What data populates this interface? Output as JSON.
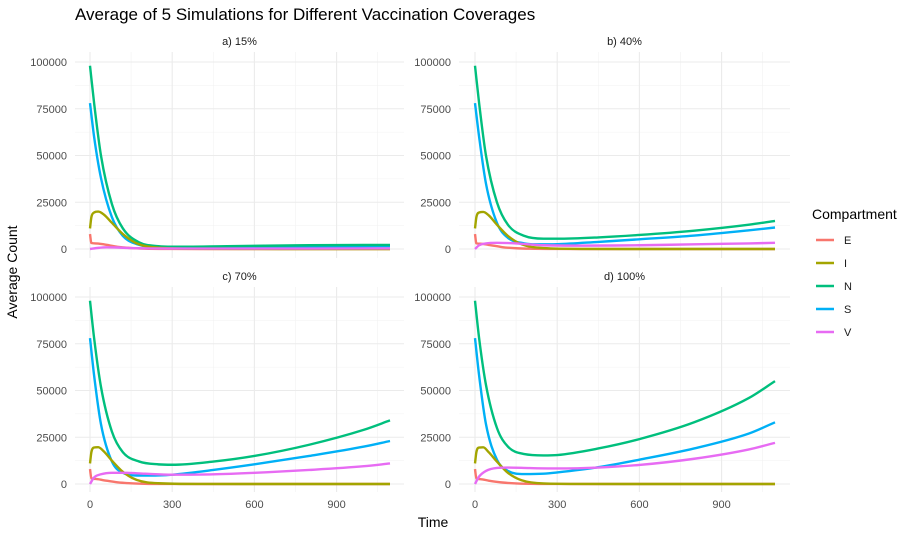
{
  "chart_data": {
    "type": "line",
    "title": "Average of 5 Simulations for Different Vaccination Coverages",
    "xlabel": "Time",
    "ylabel": "Average Count",
    "xlim": [
      0,
      1095
    ],
    "ylim": [
      0,
      100000
    ],
    "x_ticks": [
      0,
      300,
      600,
      900
    ],
    "x_tick_labels": [
      "0",
      "300",
      "600",
      "900"
    ],
    "y_ticks": [
      0,
      25000,
      50000,
      75000,
      100000
    ],
    "y_tick_labels": [
      "0",
      "25000",
      "50000",
      "75000",
      "100000"
    ],
    "grid": true,
    "legend": {
      "title": "Compartment",
      "position": "right",
      "entries": [
        {
          "name": "E",
          "color": "#F8766D"
        },
        {
          "name": "I",
          "color": "#A3A500"
        },
        {
          "name": "N",
          "color": "#00BF7D"
        },
        {
          "name": "S",
          "color": "#00B0F6"
        },
        {
          "name": "V",
          "color": "#E76BF3"
        }
      ]
    },
    "panels": [
      {
        "label": "a) 15%",
        "series": [
          {
            "name": "E",
            "x": [
              0,
              5,
              20,
              50,
              100,
              150,
              200,
              300,
              500,
              800,
              1095
            ],
            "y": [
              8000,
              3200,
              3000,
              2500,
              1200,
              500,
              200,
              50,
              0,
              0,
              0
            ]
          },
          {
            "name": "I",
            "x": [
              0,
              5,
              15,
              30,
              50,
              80,
              120,
              170,
              250,
              400,
              700,
              1095
            ],
            "y": [
              11000,
              17000,
              19500,
              20000,
              18500,
              14000,
              8000,
              3000,
              700,
              100,
              0,
              0
            ]
          },
          {
            "name": "N",
            "x": [
              0,
              15,
              40,
              80,
              120,
              180,
              250,
              300,
              500,
              800,
              1095
            ],
            "y": [
              98000,
              78000,
              50000,
              24000,
              11000,
              3500,
              1500,
              1200,
              1500,
              2000,
              2200
            ]
          },
          {
            "name": "S",
            "x": [
              0,
              15,
              40,
              80,
              120,
              180,
              250,
              300,
              500,
              800,
              1095
            ],
            "y": [
              78000,
              60000,
              38000,
              17000,
              7000,
              2200,
              1000,
              900,
              1000,
              1300,
              1500
            ]
          },
          {
            "name": "V",
            "x": [
              0,
              30,
              60,
              100,
              150,
              250,
              500,
              800,
              1095
            ],
            "y": [
              0,
              600,
              900,
              800,
              500,
              300,
              250,
              250,
              300
            ]
          }
        ]
      },
      {
        "label": "b) 40%",
        "series": [
          {
            "name": "E",
            "x": [
              0,
              5,
              20,
              50,
              100,
              150,
              200,
              300,
              500,
              800,
              1095
            ],
            "y": [
              8000,
              3000,
              2800,
              2200,
              1000,
              400,
              150,
              30,
              0,
              0,
              0
            ]
          },
          {
            "name": "I",
            "x": [
              0,
              5,
              15,
              30,
              50,
              80,
              120,
              170,
              250,
              400,
              700,
              1095
            ],
            "y": [
              11000,
              17000,
              19500,
              19800,
              18000,
              13000,
              7000,
              2500,
              500,
              50,
              0,
              0
            ]
          },
          {
            "name": "N",
            "x": [
              0,
              15,
              40,
              80,
              120,
              180,
              250,
              300,
              450,
              600,
              800,
              1000,
              1095
            ],
            "y": [
              98000,
              78000,
              50000,
              25000,
              13000,
              7000,
              5500,
              5500,
              6200,
              7500,
              9800,
              13000,
              15000
            ]
          },
          {
            "name": "S",
            "x": [
              0,
              15,
              40,
              80,
              120,
              180,
              220,
              300,
              450,
              600,
              800,
              1000,
              1095
            ],
            "y": [
              78000,
              60000,
              35000,
              14000,
              6000,
              3000,
              2500,
              2600,
              3800,
              5200,
              7200,
              10000,
              11500
            ]
          },
          {
            "name": "V",
            "x": [
              0,
              15,
              40,
              80,
              150,
              250,
              400,
              600,
              800,
              1000,
              1095
            ],
            "y": [
              0,
              2000,
              3000,
              3300,
              3000,
              2000,
              1800,
              2000,
              2500,
              3000,
              3300
            ]
          }
        ]
      },
      {
        "label": "c) 70%",
        "series": [
          {
            "name": "E",
            "x": [
              0,
              5,
              20,
              50,
              100,
              150,
              200,
              300,
              500,
              800,
              1095
            ],
            "y": [
              8000,
              3000,
              2700,
              2000,
              900,
              350,
              120,
              20,
              0,
              0,
              0
            ]
          },
          {
            "name": "I",
            "x": [
              0,
              5,
              15,
              30,
              50,
              80,
              120,
              170,
              250,
              400,
              700,
              1095
            ],
            "y": [
              11000,
              17000,
              19500,
              19700,
              17500,
              12500,
              6500,
              2200,
              400,
              30,
              0,
              0
            ]
          },
          {
            "name": "N",
            "x": [
              0,
              15,
              40,
              80,
              120,
              180,
              250,
              300,
              450,
              600,
              800,
              1000,
              1095
            ],
            "y": [
              98000,
              78000,
              52000,
              28000,
              17000,
              12000,
              10500,
              10300,
              12000,
              15000,
              21000,
              29000,
              34000
            ]
          },
          {
            "name": "S",
            "x": [
              0,
              15,
              40,
              80,
              120,
              180,
              250,
              300,
              450,
              600,
              800,
              1000,
              1095
            ],
            "y": [
              78000,
              58000,
              32000,
              12000,
              6000,
              4500,
              4600,
              5000,
              7500,
              10500,
              15000,
              20000,
              23000
            ]
          },
          {
            "name": "V",
            "x": [
              0,
              15,
              40,
              80,
              120,
              200,
              300,
              450,
              600,
              800,
              1000,
              1095
            ],
            "y": [
              0,
              3500,
              5200,
              6000,
              6000,
              5500,
              5000,
              5200,
              6000,
              7500,
              9500,
              11000
            ]
          }
        ]
      },
      {
        "label": "d) 100%",
        "series": [
          {
            "name": "E",
            "x": [
              0,
              5,
              20,
              50,
              100,
              150,
              200,
              300,
              500,
              800,
              1095
            ],
            "y": [
              8000,
              3000,
              2600,
              1800,
              800,
              300,
              100,
              20,
              0,
              0,
              0
            ]
          },
          {
            "name": "I",
            "x": [
              0,
              5,
              15,
              30,
              50,
              80,
              120,
              170,
              250,
              400,
              700,
              1095
            ],
            "y": [
              11000,
              17000,
              19500,
              19600,
              17000,
              12000,
              6000,
              2000,
              300,
              20,
              0,
              0
            ]
          },
          {
            "name": "N",
            "x": [
              0,
              15,
              40,
              80,
              120,
              180,
              250,
              300,
              450,
              600,
              800,
              1000,
              1095
            ],
            "y": [
              98000,
              78000,
              53000,
              30000,
              20000,
              16000,
              15300,
              15500,
              19000,
              24000,
              33000,
              46000,
              55000
            ]
          },
          {
            "name": "S",
            "x": [
              0,
              15,
              40,
              80,
              120,
              180,
              250,
              300,
              450,
              600,
              800,
              1000,
              1095
            ],
            "y": [
              78000,
              58000,
              32000,
              13000,
              7000,
              5300,
              5500,
              6200,
              9000,
              13000,
              19000,
              27000,
              33000
            ]
          },
          {
            "name": "V",
            "x": [
              0,
              15,
              40,
              80,
              120,
              200,
              300,
              450,
              600,
              800,
              1000,
              1095
            ],
            "y": [
              0,
              4000,
              7000,
              8600,
              8800,
              8500,
              8300,
              8800,
              10200,
              13500,
              18500,
              22000
            ]
          }
        ]
      }
    ]
  }
}
